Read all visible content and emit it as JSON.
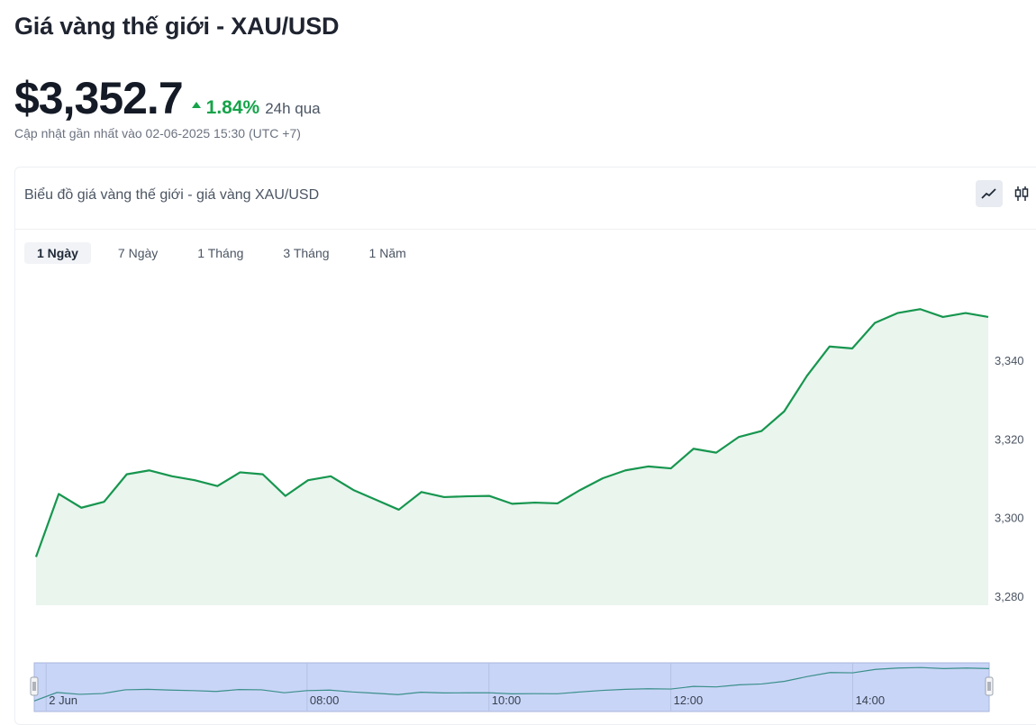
{
  "page": {
    "title": "Giá vàng thế giới - XAU/USD",
    "price": "$3,352.7",
    "change_pct": "1.84%",
    "change_period": "24h qua",
    "updated": "Cập nhật gần nhất vào 02-06-2025 15:30 (UTC +7)"
  },
  "card": {
    "title": "Biểu đồ giá vàng thế giới - giá vàng XAU/USD",
    "chart_types": [
      {
        "name": "line-chart-icon",
        "active": true
      },
      {
        "name": "candlestick-chart-icon",
        "active": false
      }
    ],
    "ranges": [
      {
        "label": "1 Ngày",
        "active": true
      },
      {
        "label": "7 Ngày",
        "active": false
      },
      {
        "label": "1 Tháng",
        "active": false
      },
      {
        "label": "3 Tháng",
        "active": false
      },
      {
        "label": "1 Năm",
        "active": false
      }
    ]
  },
  "colors": {
    "line": "#17964f",
    "area": "#eaf5ee",
    "navigator_fill": "#c9d5f7",
    "navigator_line": "#3a8f8a"
  },
  "chart_data": {
    "type": "area",
    "series": [
      {
        "values": [
          3290,
          3306,
          3302.5,
          3304,
          3311,
          3312,
          3310.5,
          3309.5,
          3308,
          3311.5,
          3311,
          3305.5,
          3309.5,
          3310.5,
          3307,
          3304.5,
          3302,
          3306.5,
          3305.2,
          3305.4,
          3305.5,
          3303.5,
          3303.8,
          3303.6,
          3307,
          3310,
          3312,
          3313,
          3312.5,
          3317.5,
          3316.5,
          3320.5,
          3322,
          3327,
          3336,
          3343.5,
          3343,
          3349.5,
          3352,
          3353,
          3351,
          3352,
          3351
        ]
      }
    ],
    "ylim": [
      3280,
      3355
    ],
    "yticks": [
      "3,280",
      "3,300",
      "3,320",
      "3,340"
    ],
    "ytick_values": [
      3280,
      3300,
      3320,
      3340
    ],
    "navigator": {
      "labels": [
        "2 Jun",
        "08:00",
        "10:00",
        "12:00",
        "14:00"
      ],
      "label_indices": [
        1,
        12,
        20,
        28,
        36
      ]
    }
  }
}
